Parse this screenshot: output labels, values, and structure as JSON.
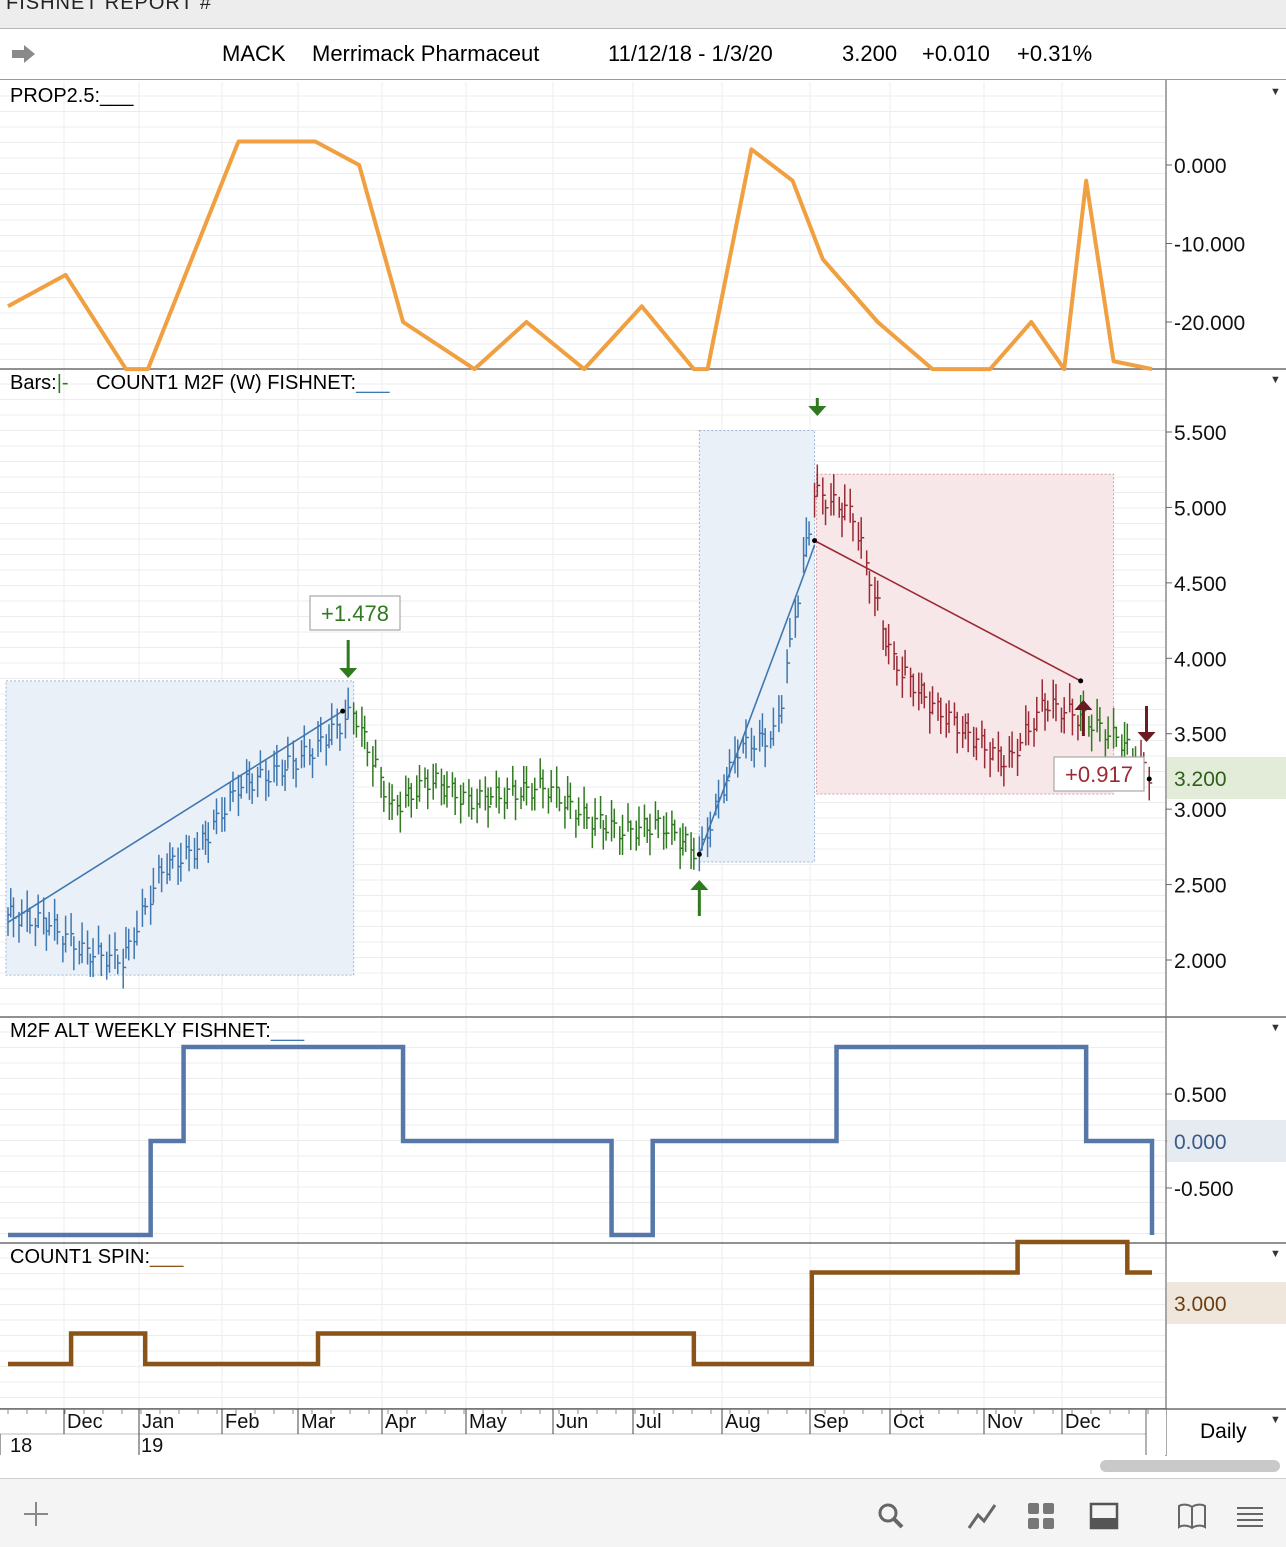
{
  "window": {
    "title": "FISHNET  REPORT #"
  },
  "header": {
    "symbol": "MACK",
    "name": "Merrimack Pharmaceut",
    "date_range": "11/12/18 - 1/3/20",
    "price": "3.200",
    "change": "+0.010",
    "change_pct": "+0.31%"
  },
  "panels": {
    "prop": {
      "label": "PROP2.5:",
      "blank": "___",
      "ticks": [
        "0.000",
        "-10.000",
        "-20.000"
      ]
    },
    "main": {
      "label_bars": "Bars:",
      "bars_glyph": "|-",
      "label": "COUNT1 M2F (W) FISHNET:",
      "blank": "___",
      "ticks": [
        "5.500",
        "5.000",
        "4.500",
        "4.000",
        "3.500",
        "3.000",
        "2.500",
        "2.000"
      ],
      "last_price": "3.200",
      "box1_label": "+1.478",
      "box3_label": "+0.917"
    },
    "alt": {
      "label": "M2F ALT WEEKLY FISHNET:",
      "blank": "___",
      "ticks": [
        "0.500",
        "0.000",
        "-0.500"
      ]
    },
    "spin": {
      "label": "COUNT1 SPIN:",
      "blank": "___",
      "last_value": "3.000"
    }
  },
  "xaxis": {
    "months": [
      "Dec",
      "Jan",
      "Feb",
      "Mar",
      "Apr",
      "May",
      "Jun",
      "Jul",
      "Aug",
      "Sep",
      "Oct",
      "Nov",
      "Dec"
    ],
    "years": [
      "18",
      "19"
    ],
    "interval": "Daily"
  },
  "colors": {
    "orange": "#f0a040",
    "blue": "#3f78b0",
    "green": "#2f7a1f",
    "red": "#9a2a35",
    "steel": "#5578a8",
    "brown": "#8a5418"
  },
  "toolbar": {
    "icons": [
      "plus-icon",
      "search-icon",
      "line-chart-icon",
      "grid-icon",
      "panel-icon",
      "book-icon",
      "menu-icon"
    ]
  },
  "chart_data": [
    {
      "type": "line",
      "title": "PROP2.5",
      "x": [
        "2018-11-12",
        "2018-12-03",
        "2018-12-25",
        "2019-01-02",
        "2019-02-04",
        "2019-03-04",
        "2019-03-20",
        "2019-04-05",
        "2019-05-01",
        "2019-05-20",
        "2019-06-10",
        "2019-07-01",
        "2019-07-20",
        "2019-07-25",
        "2019-08-10",
        "2019-08-25",
        "2019-09-05",
        "2019-09-25",
        "2019-10-15",
        "2019-11-05",
        "2019-11-20",
        "2019-12-02",
        "2019-12-10",
        "2019-12-20",
        "2020-01-03"
      ],
      "values": [
        -18,
        -14,
        -26,
        -26,
        3,
        3,
        0,
        -20,
        -26,
        -20,
        -26,
        -18,
        -26,
        -26,
        2,
        -2,
        -12,
        -20,
        -26,
        -26,
        -20,
        -26,
        -2,
        -25,
        -26
      ],
      "ylim": [
        -27,
        7
      ]
    },
    {
      "type": "bar",
      "title": "COUNT1 M2F (W) FISHNET",
      "x": [
        "2018-11-12",
        "2018-11-26",
        "2018-12-10",
        "2018-12-24",
        "2019-01-07",
        "2019-01-21",
        "2019-02-04",
        "2019-02-18",
        "2019-03-04",
        "2019-03-18",
        "2019-04-01",
        "2019-04-15",
        "2019-04-29",
        "2019-05-13",
        "2019-05-27",
        "2019-06-10",
        "2019-06-24",
        "2019-07-08",
        "2019-07-22",
        "2019-08-05",
        "2019-08-19",
        "2019-09-02",
        "2019-09-16",
        "2019-09-30",
        "2019-10-14",
        "2019-10-28",
        "2019-11-11",
        "2019-11-25",
        "2019-12-09",
        "2019-12-23",
        "2020-01-03"
      ],
      "close": [
        2.3,
        2.25,
        2.05,
        2.0,
        2.6,
        2.75,
        3.15,
        3.25,
        3.4,
        3.65,
        3.0,
        3.2,
        3.05,
        3.1,
        3.15,
        2.95,
        2.85,
        2.9,
        2.7,
        3.4,
        3.5,
        5.1,
        4.95,
        4.0,
        3.7,
        3.5,
        3.3,
        3.7,
        3.6,
        3.45,
        3.2
      ],
      "ylim": [
        1.6,
        5.8
      ],
      "annotations": [
        "+1.478",
        "+0.917"
      ]
    },
    {
      "type": "line",
      "title": "M2F ALT WEEKLY FISHNET",
      "x": [
        "2018-11-12",
        "2019-01-03",
        "2019-01-15",
        "2019-04-05",
        "2019-05-25",
        "2019-06-20",
        "2019-07-05",
        "2019-08-10",
        "2019-09-10",
        "2019-12-10",
        "2020-01-03"
      ],
      "values": [
        -1,
        0,
        1,
        0,
        0,
        -1,
        0,
        0,
        1,
        0,
        -1
      ],
      "ylim": [
        -1.05,
        1.05
      ]
    },
    {
      "type": "line",
      "title": "COUNT1 SPIN",
      "x": [
        "2018-11-12",
        "2018-12-05",
        "2019-01-01",
        "2019-03-05",
        "2019-07-20",
        "2019-09-01",
        "2019-11-15",
        "2019-12-25",
        "2020-01-03"
      ],
      "values": [
        0,
        1,
        0,
        1,
        0,
        3,
        4,
        3,
        3
      ],
      "ylim": [
        -1.1,
        4.2
      ]
    }
  ]
}
